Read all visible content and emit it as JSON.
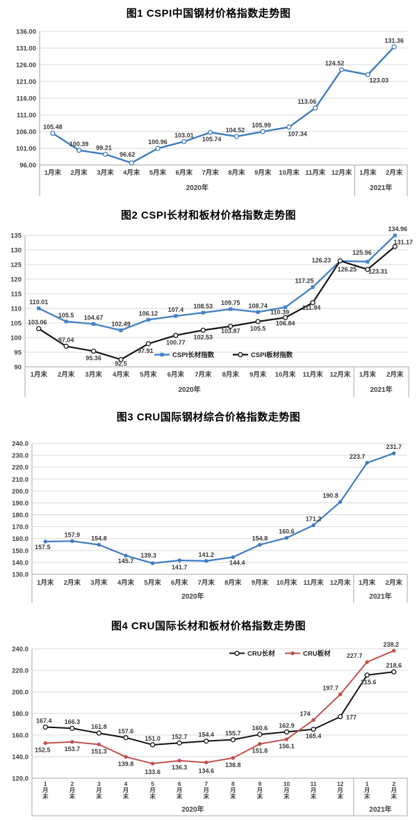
{
  "page": {
    "background": "#ffffff"
  },
  "chart_data": [
    {
      "id": "fig1",
      "type": "line",
      "title": "图1 CSPI中国钢材价格指数走势图",
      "categories": [
        "1月末",
        "2月末",
        "3月末",
        "4月末",
        "5月末",
        "6月末",
        "7月末",
        "8月末",
        "9月末",
        "10月末",
        "11月末",
        "12月末",
        "1月末",
        "2月末"
      ],
      "year_groups": [
        {
          "label": "2020年",
          "count": 12
        },
        {
          "label": "2021年",
          "count": 2
        }
      ],
      "ylim": [
        96,
        136
      ],
      "ystep": 5,
      "yticks": [
        "96.00",
        "101.00",
        "106.00",
        "111.00",
        "116.00",
        "121.00",
        "126.00",
        "131.00",
        "136.00"
      ],
      "grid": true,
      "legend": null,
      "series": [
        {
          "name": "CSPI中国钢材价格指数",
          "color": "#3d7bbf",
          "marker": "open-circle",
          "line_width": 2.4,
          "values": [
            105.48,
            100.39,
            99.21,
            96.62,
            100.96,
            103.01,
            105.74,
            104.52,
            105.99,
            107.34,
            113.06,
            124.52,
            123.03,
            131.36
          ],
          "point_labels": [
            {
              "t": "105.48",
              "p": "above"
            },
            {
              "t": "100.39",
              "p": "above"
            },
            {
              "t": "99.21",
              "p": "above",
              "dx": -2
            },
            {
              "t": "96.62",
              "p": "above",
              "dx": -6,
              "dy": -3
            },
            {
              "t": "100.96",
              "p": "above"
            },
            {
              "t": "103.01",
              "p": "above"
            },
            {
              "t": "105.74",
              "p": "below",
              "dx": 2
            },
            {
              "t": "104.52",
              "p": "above",
              "dx": -2
            },
            {
              "t": "105.99",
              "p": "above",
              "dx": -2
            },
            {
              "t": "107.34",
              "p": "below",
              "dx": 12
            },
            {
              "t": "113.06",
              "p": "above",
              "dx": -12
            },
            {
              "t": "124.52",
              "p": "above",
              "dx": -10
            },
            {
              "t": "123.03",
              "p": "below",
              "dx": 16,
              "dy": -2
            },
            {
              "t": "131.36",
              "p": "above"
            }
          ]
        }
      ]
    },
    {
      "id": "fig2",
      "type": "line",
      "title": "图2 CSPI长材和板材价格指数走势图",
      "categories": [
        "1月末",
        "2月末",
        "3月末",
        "4月末",
        "5月末",
        "6月末",
        "7月末",
        "8月末",
        "9月末",
        "10月末",
        "11月末",
        "12月末",
        "1月末",
        "2月末"
      ],
      "year_groups": [
        {
          "label": "2020年",
          "count": 12
        },
        {
          "label": "2021年",
          "count": 2
        }
      ],
      "ylim": [
        90,
        135
      ],
      "ystep": 5,
      "yticks": [
        "90",
        "95",
        "100",
        "105",
        "110",
        "115",
        "120",
        "125",
        "130",
        "135"
      ],
      "grid": true,
      "legend": {
        "items": [
          {
            "series": 0,
            "label": "CSPI长材指数"
          },
          {
            "series": 1,
            "label": "CSPI板材指数"
          }
        ]
      },
      "series": [
        {
          "name": "CSPI长材指数",
          "color": "#4583c6",
          "marker": "filled-square",
          "line_width": 2.4,
          "values": [
            110.01,
            105.5,
            104.67,
            102.49,
            106.12,
            107.4,
            108.53,
            109.75,
            108.74,
            110.39,
            117.25,
            126.23,
            125.96,
            134.96
          ],
          "point_labels": [
            {
              "t": "110.01",
              "p": "above"
            },
            {
              "t": "105.5",
              "p": "above"
            },
            {
              "t": "104.67",
              "p": "above"
            },
            {
              "t": "102.49",
              "p": "above"
            },
            {
              "t": "106.12",
              "p": "above"
            },
            {
              "t": "107.4",
              "p": "above"
            },
            {
              "t": "108.53",
              "p": "above"
            },
            {
              "t": "109.75",
              "p": "above"
            },
            {
              "t": "108.74",
              "p": "above"
            },
            {
              "t": "110.39",
              "p": "below",
              "dx": -8,
              "dy": -3
            },
            {
              "t": "117.25",
              "p": "above",
              "dx": -12
            },
            {
              "t": "126.23",
              "p": "above",
              "dx": -27,
              "dy": 8
            },
            {
              "t": "125.96",
              "p": "above",
              "dx": -8,
              "dy": -4
            },
            {
              "t": "134.96",
              "p": "above",
              "dx": 4
            }
          ]
        },
        {
          "name": "CSPI板材指数",
          "color": "#141414",
          "marker": "open-circle",
          "line_width": 2.2,
          "values": [
            103.06,
            97.04,
            95.36,
            92.5,
            97.91,
            100.77,
            102.53,
            103.87,
            105.5,
            106.84,
            111.94,
            126.25,
            123.31,
            131.17
          ],
          "point_labels": [
            {
              "t": "103.06",
              "p": "above",
              "dx": -2
            },
            {
              "t": "97.04",
              "p": "above"
            },
            {
              "t": "95.36",
              "p": "below"
            },
            {
              "t": "92.5",
              "p": "below",
              "dy": -4
            },
            {
              "t": "97.91",
              "p": "below",
              "dx": -4
            },
            {
              "t": "100.77",
              "p": "below"
            },
            {
              "t": "102.53",
              "p": "below"
            },
            {
              "t": "103.87",
              "p": "below",
              "dy": -3
            },
            {
              "t": "105.5",
              "p": "below"
            },
            {
              "t": "106.84",
              "p": "below",
              "dy": -2
            },
            {
              "t": "111.94",
              "p": "below",
              "dx": -2,
              "dy": -3
            },
            {
              "t": "126.25",
              "p": "below",
              "dx": 10,
              "dy": 2
            },
            {
              "t": "123.31",
              "p": "below",
              "dx": 15,
              "dy": -7
            },
            {
              "t": "131.17",
              "p": "above",
              "dx": 12,
              "dy": 3
            }
          ]
        }
      ]
    },
    {
      "id": "fig3",
      "type": "line",
      "title": "图3 CRU国际钢材综合价格指数走势图",
      "categories": [
        "1月末",
        "2月末",
        "3月末",
        "4月末",
        "5月末",
        "6月末",
        "7月末",
        "8月末",
        "9月末",
        "10月末",
        "11月末",
        "12月末",
        "1月末",
        "2月末"
      ],
      "year_groups": [
        {
          "label": "2020年",
          "count": 12
        },
        {
          "label": "2021年",
          "count": 2
        }
      ],
      "ylim": [
        130,
        240
      ],
      "ystep": 10,
      "yticks": [
        "130.0",
        "140.0",
        "150.0",
        "160.0",
        "170.0",
        "180.0",
        "190.0",
        "200.0",
        "210.0",
        "220.0",
        "230.0",
        "240.0"
      ],
      "grid": true,
      "legend": null,
      "series": [
        {
          "name": "CRU国际钢材综合价格指数",
          "color": "#3d7bbf",
          "marker": "filled-circle",
          "line_width": 2.2,
          "values": [
            157.5,
            157.9,
            154.8,
            145.7,
            139.3,
            141.7,
            141.2,
            144.4,
            154.8,
            160.6,
            171.2,
            190.8,
            223.7,
            231.7
          ],
          "point_labels": [
            {
              "t": "157.5",
              "p": "below",
              "dx": -4,
              "dy": -2
            },
            {
              "t": "157.9",
              "p": "above"
            },
            {
              "t": "154.8",
              "p": "above"
            },
            {
              "t": "145.7",
              "p": "below",
              "dy": -2
            },
            {
              "t": "139.3",
              "p": "above",
              "dx": -6,
              "dy": -2
            },
            {
              "t": "141.7",
              "p": "below"
            },
            {
              "t": "141.2",
              "p": "above"
            },
            {
              "t": "144.4",
              "p": "below",
              "dx": 6,
              "dy": -2
            },
            {
              "t": "154.8",
              "p": "above"
            },
            {
              "t": "160.6",
              "p": "above"
            },
            {
              "t": "171.2",
              "p": "above"
            },
            {
              "t": "190.8",
              "p": "above",
              "dx": -14
            },
            {
              "t": "223.7",
              "p": "above",
              "dx": -14
            },
            {
              "t": "231.7",
              "p": "above"
            }
          ]
        }
      ]
    },
    {
      "id": "fig4",
      "type": "line",
      "title": "图4 CRU国际长材和板材价格指数走势图",
      "categories": [
        "1月末",
        "2月末",
        "3月末",
        "4月末",
        "5月末",
        "6月末",
        "7月末",
        "8月末",
        "9月末",
        "10月末",
        "11月末",
        "12月末",
        "1月末",
        "2月末"
      ],
      "year_groups": [
        {
          "label": "2020年",
          "count": 12
        },
        {
          "label": "2021年",
          "count": 2
        }
      ],
      "ylim": [
        120,
        240
      ],
      "ystep": 20,
      "yticks": [
        "120.0",
        "140.0",
        "160.0",
        "180.0",
        "200.0",
        "220.0",
        "240.0"
      ],
      "grid": true,
      "legend": {
        "items": [
          {
            "series": 0,
            "label": "CRU长材"
          },
          {
            "series": 1,
            "label": "CRU板材"
          }
        ]
      },
      "series": [
        {
          "name": "CRU长材",
          "color": "#111111",
          "marker": "open-circle",
          "line_width": 2,
          "values": [
            167.4,
            166.3,
            161.8,
            157.6,
            151.0,
            152.7,
            154.4,
            155.7,
            160.6,
            162.9,
            165.4,
            177,
            215.6,
            218.6
          ],
          "point_labels": [
            {
              "t": "167.4",
              "p": "above",
              "dx": -2
            },
            {
              "t": "166.3",
              "p": "above"
            },
            {
              "t": "161.8",
              "p": "above"
            },
            {
              "t": "157.6",
              "p": "above"
            },
            {
              "t": "151.0",
              "p": "above"
            },
            {
              "t": "152.7",
              "p": "above"
            },
            {
              "t": "154.4",
              "p": "above"
            },
            {
              "t": "155.7",
              "p": "above"
            },
            {
              "t": "160.6",
              "p": "above"
            },
            {
              "t": "162.9",
              "p": "above"
            },
            {
              "t": "165.4",
              "p": "below"
            },
            {
              "t": "177",
              "p": "below",
              "dx": 16,
              "dy": -9
            },
            {
              "t": "215.6",
              "p": "below",
              "dx": 2
            },
            {
              "t": "218.6",
              "p": "above"
            }
          ]
        },
        {
          "name": "CRU板材",
          "color": "#c0504d",
          "marker": "filled-circle",
          "line_width": 2,
          "values": [
            152.5,
            153.7,
            151.3,
            139.8,
            133.6,
            136.3,
            134.6,
            138.8,
            151.8,
            156.1,
            174,
            197.7,
            227.7,
            238.2
          ],
          "point_labels": [
            {
              "t": "152.5",
              "p": "below",
              "dx": -4
            },
            {
              "t": "153.7",
              "p": "below"
            },
            {
              "t": "151.3",
              "p": "below"
            },
            {
              "t": "139.8",
              "p": "below"
            },
            {
              "t": "133.6",
              "p": "below",
              "dy": 2
            },
            {
              "t": "136.3",
              "p": "below"
            },
            {
              "t": "134.6",
              "p": "below",
              "dy": 2
            },
            {
              "t": "138.8",
              "p": "below"
            },
            {
              "t": "151.8",
              "p": "below"
            },
            {
              "t": "156.1",
              "p": "below"
            },
            {
              "t": "174",
              "p": "above",
              "dx": -12
            },
            {
              "t": "197.7",
              "p": "above",
              "dx": -14
            },
            {
              "t": "227.7",
              "p": "above",
              "dx": -18
            },
            {
              "t": "238.2",
              "p": "above",
              "dx": -4
            }
          ]
        }
      ]
    }
  ]
}
